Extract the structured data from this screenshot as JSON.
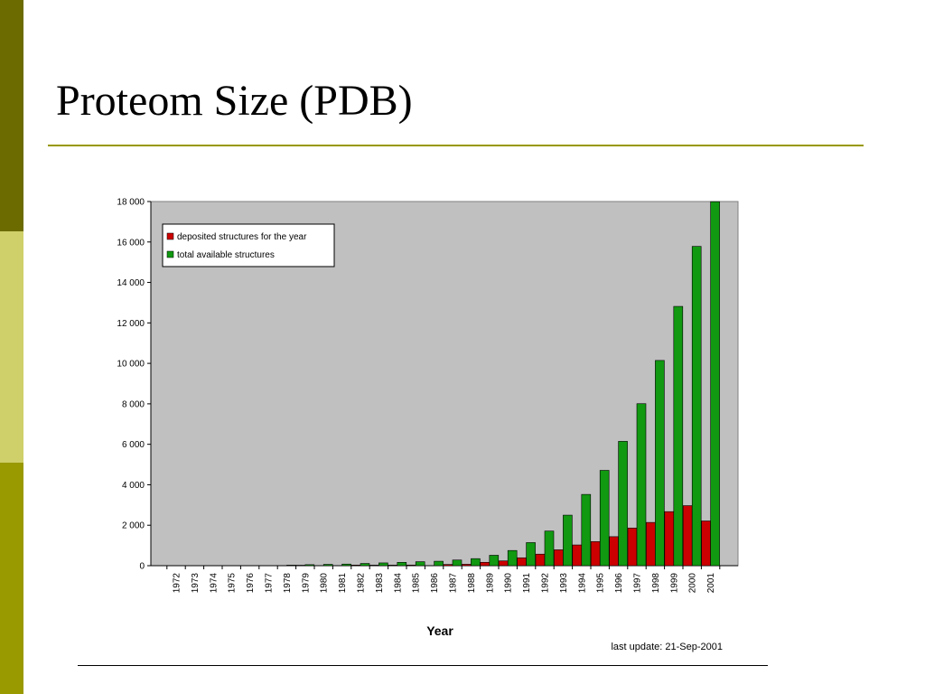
{
  "slide": {
    "title": "Proteom Size (PDB)",
    "colors": {
      "stripe_dark": "#6b6b00",
      "stripe_light": "#cfd06a",
      "stripe_mid": "#999900",
      "rule": "#999900"
    }
  },
  "chart_data": {
    "type": "bar",
    "xlabel": "Year",
    "ylabel": "",
    "ylim": [
      0,
      18000
    ],
    "yticks": [
      "0",
      "2 000",
      "4 000",
      "6 000",
      "8 000",
      "10 000",
      "12 000",
      "14 000",
      "16 000",
      "18 000"
    ],
    "grid": false,
    "legend_position": "top-left",
    "categories": [
      "1972",
      "1973",
      "1974",
      "1975",
      "1976",
      "1977",
      "1978",
      "1979",
      "1980",
      "1981",
      "1982",
      "1983",
      "1984",
      "1985",
      "1986",
      "1987",
      "1988",
      "1989",
      "1990",
      "1991",
      "1992",
      "1993",
      "1994",
      "1995",
      "1996",
      "1997",
      "1998",
      "1999",
      "2000",
      "2001"
    ],
    "series": [
      {
        "name": "deposited structures for the year",
        "color": "#cc0000",
        "values": [
          1,
          0,
          0,
          0,
          13,
          7,
          6,
          23,
          16,
          13,
          31,
          27,
          28,
          32,
          22,
          61,
          69,
          166,
          236,
          390,
          571,
          786,
          1025,
          1189,
          1434,
          1861,
          2138,
          2671,
          2967,
          2210
        ]
      },
      {
        "name": "total available structures",
        "color": "#119911",
        "values": [
          1,
          1,
          1,
          1,
          14,
          21,
          27,
          50,
          66,
          79,
          110,
          137,
          165,
          197,
          219,
          280,
          349,
          515,
          751,
          1141,
          1712,
          2498,
          3523,
          4712,
          6146,
          8007,
          10145,
          12816,
          15783,
          17993
        ]
      }
    ],
    "annotation": "last update: 21-Sep-2001"
  }
}
